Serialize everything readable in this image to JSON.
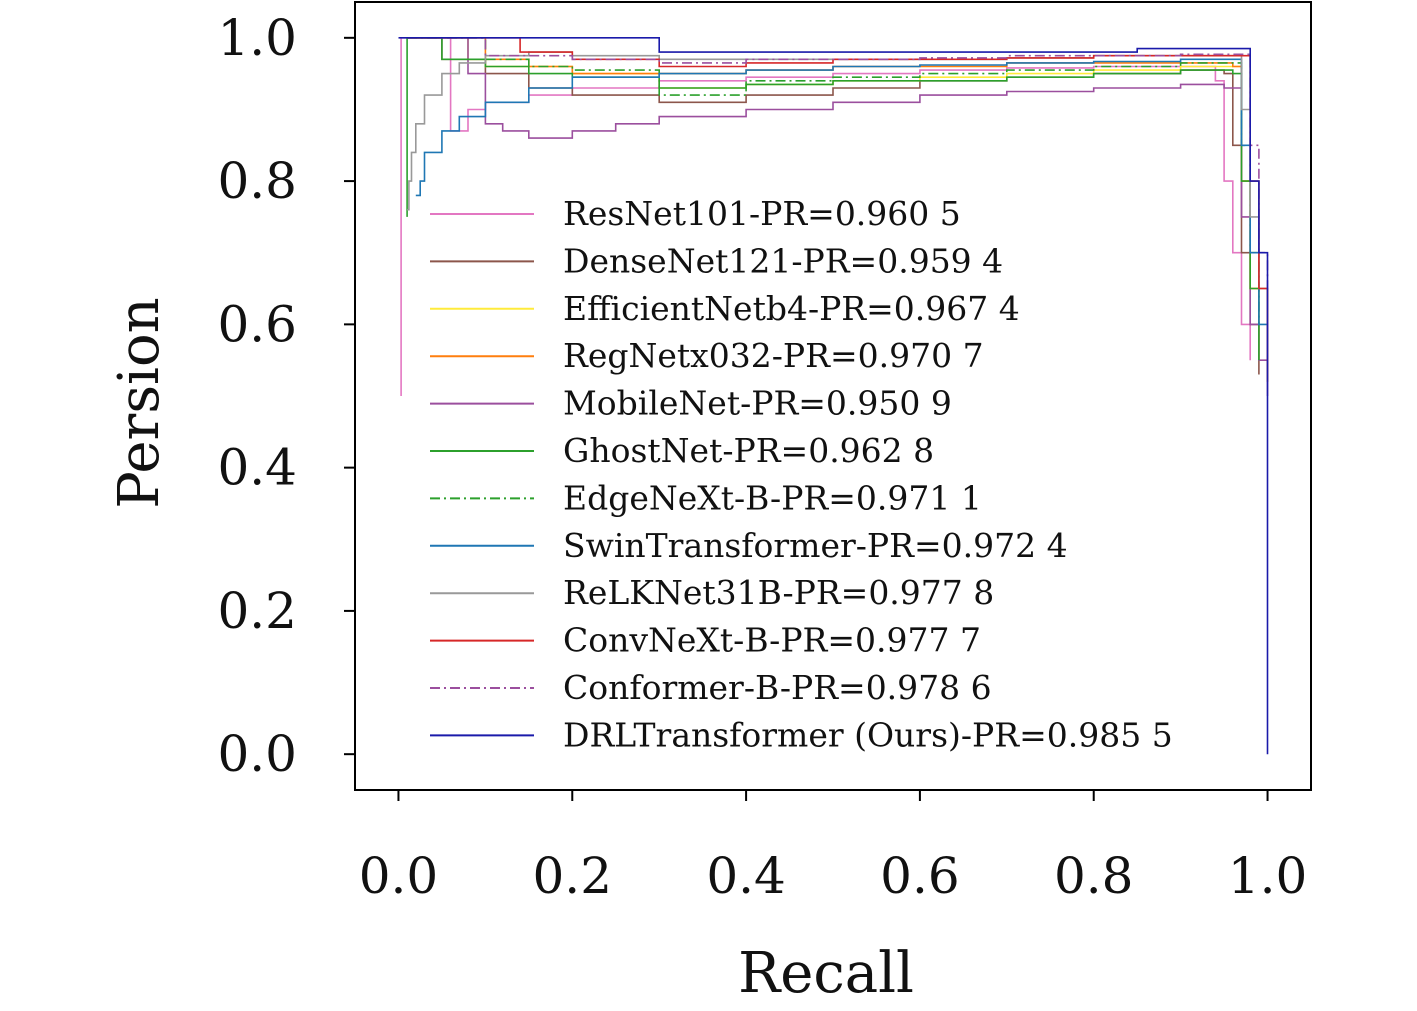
{
  "chart_data": {
    "type": "line",
    "title": "",
    "xlabel": "Recall",
    "ylabel": "Persion",
    "xlim": [
      -0.05,
      1.05
    ],
    "ylim": [
      -0.05,
      1.05
    ],
    "xticks": [
      0.0,
      0.2,
      0.4,
      0.6,
      0.8,
      1.0
    ],
    "yticks": [
      0.0,
      0.2,
      0.4,
      0.6,
      0.8,
      1.0
    ],
    "xtick_labels": [
      "0.0",
      "0.2",
      "0.4",
      "0.6",
      "0.8",
      "1.0"
    ],
    "ytick_labels": [
      "0.0",
      "0.2",
      "0.4",
      "0.6",
      "0.8",
      "1.0"
    ],
    "grid": false,
    "legend_position": "center",
    "series": [
      {
        "name": "ResNet101-PR=0.960 5",
        "color": "#e377c2",
        "dash": "solid",
        "x": [
          0.003,
          0.003,
          0.03,
          0.06,
          0.06,
          0.08,
          0.1,
          0.15,
          0.2,
          0.3,
          0.4,
          0.5,
          0.6,
          0.7,
          0.8,
          0.9,
          0.94,
          0.95,
          0.96,
          0.97,
          0.98
        ],
        "y": [
          0.5,
          1.0,
          1.0,
          1.0,
          0.87,
          0.9,
          0.91,
          0.92,
          0.93,
          0.94,
          0.945,
          0.95,
          0.955,
          0.958,
          0.96,
          0.96,
          0.94,
          0.8,
          0.7,
          0.6,
          0.55
        ]
      },
      {
        "name": "DenseNet121-PR=0.959 4",
        "color": "#8c564b",
        "dash": "solid",
        "x": [
          0.01,
          0.03,
          0.05,
          0.1,
          0.15,
          0.2,
          0.3,
          0.4,
          0.5,
          0.6,
          0.7,
          0.8,
          0.9,
          0.95,
          0.96,
          0.97,
          0.98,
          0.99
        ],
        "y": [
          1.0,
          1.0,
          0.97,
          0.95,
          0.93,
          0.92,
          0.91,
          0.92,
          0.93,
          0.94,
          0.945,
          0.95,
          0.955,
          0.95,
          0.85,
          0.7,
          0.6,
          0.53
        ]
      },
      {
        "name": "EfficientNetb4-PR=0.967 4",
        "color": "#ffeb3b",
        "dash": "solid",
        "x": [
          0.01,
          0.05,
          0.08,
          0.1,
          0.2,
          0.3,
          0.4,
          0.5,
          0.6,
          0.7,
          0.8,
          0.9,
          0.96,
          0.97,
          0.98,
          0.99
        ],
        "y": [
          1.0,
          1.0,
          0.97,
          0.96,
          0.95,
          0.93,
          0.935,
          0.94,
          0.945,
          0.95,
          0.955,
          0.96,
          0.96,
          0.8,
          0.65,
          0.55
        ]
      },
      {
        "name": "RegNetx032-PR=0.970 7",
        "color": "#ff7f0e",
        "dash": "solid",
        "x": [
          0.01,
          0.05,
          0.1,
          0.15,
          0.2,
          0.3,
          0.4,
          0.5,
          0.6,
          0.7,
          0.8,
          0.9,
          0.96,
          0.97,
          0.98,
          1.0
        ],
        "y": [
          1.0,
          1.0,
          0.97,
          0.96,
          0.95,
          0.95,
          0.955,
          0.96,
          0.96,
          0.965,
          0.965,
          0.965,
          0.96,
          0.8,
          0.65,
          0.55
        ]
      },
      {
        "name": "MobileNet-PR=0.950 9",
        "color": "#9b4f9e",
        "dash": "solid",
        "x": [
          0.01,
          0.05,
          0.08,
          0.1,
          0.12,
          0.15,
          0.2,
          0.25,
          0.3,
          0.4,
          0.5,
          0.6,
          0.7,
          0.8,
          0.9,
          0.95,
          0.97,
          0.98,
          0.99,
          1.0
        ],
        "y": [
          1.0,
          1.0,
          0.95,
          0.88,
          0.87,
          0.86,
          0.87,
          0.88,
          0.89,
          0.9,
          0.91,
          0.92,
          0.925,
          0.93,
          0.935,
          0.93,
          0.75,
          0.6,
          0.55,
          0.5
        ]
      },
      {
        "name": "GhostNet-PR=0.962 8",
        "color": "#2ca02c",
        "dash": "solid",
        "x": [
          0.01,
          0.01,
          0.03,
          0.05,
          0.1,
          0.15,
          0.2,
          0.3,
          0.4,
          0.5,
          0.6,
          0.7,
          0.8,
          0.9,
          0.96,
          0.97,
          0.98,
          0.99
        ],
        "y": [
          0.75,
          1.0,
          1.0,
          0.97,
          0.96,
          0.95,
          0.945,
          0.93,
          0.935,
          0.94,
          0.94,
          0.945,
          0.95,
          0.955,
          0.95,
          0.8,
          0.65,
          0.55
        ]
      },
      {
        "name": "EdgeNeXt-B-PR=0.971 1",
        "color": "#2ca02c",
        "dash": "dashdot",
        "x": [
          0.01,
          0.05,
          0.1,
          0.15,
          0.2,
          0.3,
          0.35,
          0.4,
          0.5,
          0.6,
          0.7,
          0.8,
          0.9,
          0.96,
          0.97,
          0.98,
          0.99
        ],
        "y": [
          1.0,
          1.0,
          0.97,
          0.96,
          0.955,
          0.92,
          0.92,
          0.94,
          0.945,
          0.95,
          0.955,
          0.96,
          0.965,
          0.965,
          0.85,
          0.7,
          0.6
        ]
      },
      {
        "name": "SwinTransformer-PR=0.972 4",
        "color": "#1f77b4",
        "dash": "solid",
        "x": [
          0.02,
          0.025,
          0.03,
          0.05,
          0.07,
          0.1,
          0.15,
          0.2,
          0.3,
          0.4,
          0.5,
          0.6,
          0.7,
          0.8,
          0.9,
          0.96,
          0.97,
          0.98,
          0.99,
          1.0
        ],
        "y": [
          0.78,
          0.8,
          0.84,
          0.87,
          0.89,
          0.91,
          0.93,
          0.945,
          0.95,
          0.955,
          0.96,
          0.962,
          0.965,
          0.967,
          0.97,
          0.97,
          0.85,
          0.7,
          0.6,
          0.52
        ]
      },
      {
        "name": "ReLKNet31B-PR=0.977 8",
        "color": "#999999",
        "dash": "solid",
        "x": [
          0.01,
          0.012,
          0.015,
          0.02,
          0.03,
          0.05,
          0.07,
          0.1,
          0.15,
          0.2,
          0.3,
          0.4,
          0.5,
          0.6,
          0.7,
          0.8,
          0.9,
          0.96,
          0.97,
          0.98,
          0.99,
          1.0
        ],
        "y": [
          0.76,
          0.8,
          0.84,
          0.88,
          0.92,
          0.95,
          0.965,
          0.975,
          0.98,
          0.975,
          0.97,
          0.97,
          0.97,
          0.97,
          0.972,
          0.975,
          0.975,
          0.975,
          0.9,
          0.75,
          0.65,
          0.55
        ]
      },
      {
        "name": "ConvNeXt-B-PR=0.977 7",
        "color": "#d62728",
        "dash": "solid",
        "x": [
          0.01,
          0.1,
          0.14,
          0.14,
          0.2,
          0.3,
          0.4,
          0.5,
          0.6,
          0.7,
          0.8,
          0.9,
          0.97,
          0.98,
          0.99,
          1.0
        ],
        "y": [
          1.0,
          1.0,
          1.0,
          0.98,
          0.97,
          0.96,
          0.965,
          0.97,
          0.97,
          0.972,
          0.975,
          0.975,
          0.975,
          0.8,
          0.65,
          0.52
        ]
      },
      {
        "name": "Conformer-B-PR=0.978 6",
        "color": "#9b4f9e",
        "dash": "dashdot",
        "x": [
          0.01,
          0.05,
          0.08,
          0.1,
          0.2,
          0.3,
          0.4,
          0.5,
          0.6,
          0.7,
          0.8,
          0.9,
          0.97,
          0.98,
          0.99,
          1.0
        ],
        "y": [
          1.0,
          1.0,
          1.0,
          0.975,
          0.97,
          0.965,
          0.97,
          0.97,
          0.972,
          0.975,
          0.975,
          0.977,
          0.977,
          0.85,
          0.7,
          0.55
        ]
      },
      {
        "name": "DRLTransformer (Ours)-PR=0.985 5",
        "color": "#1a1aaa",
        "dash": "solid",
        "x": [
          0.0,
          0.3,
          0.3,
          0.4,
          0.5,
          0.6,
          0.7,
          0.8,
          0.85,
          0.98,
          0.98,
          0.99,
          0.99,
          1.0,
          1.0
        ],
        "y": [
          1.0,
          1.0,
          0.98,
          0.98,
          0.98,
          0.98,
          0.98,
          0.98,
          0.985,
          0.985,
          0.8,
          0.75,
          0.7,
          0.55,
          0.0
        ]
      }
    ]
  }
}
